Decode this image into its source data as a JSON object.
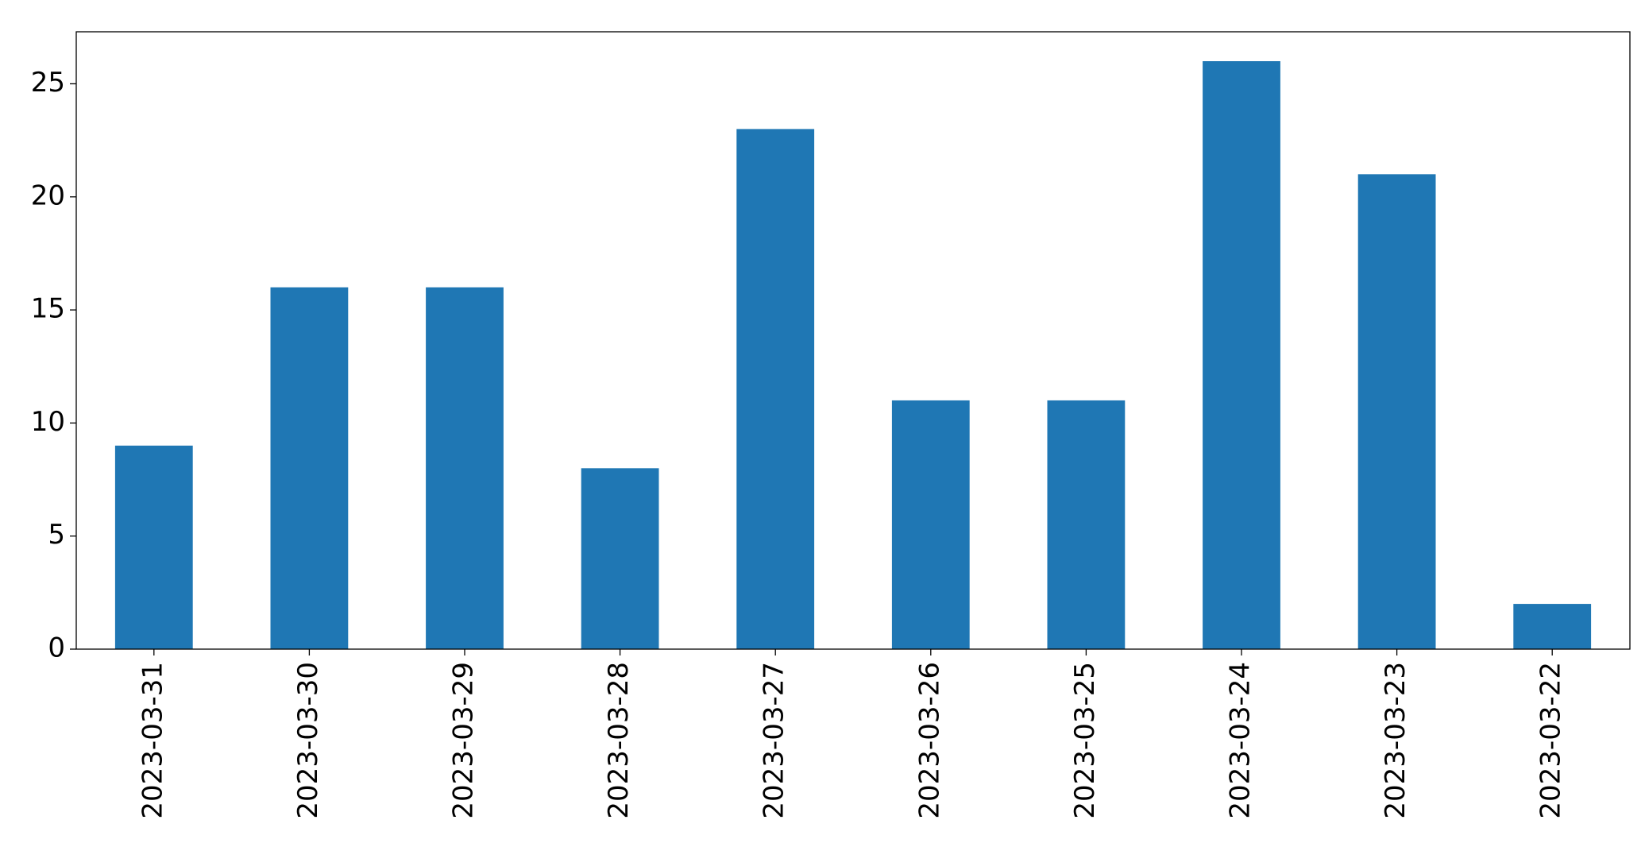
{
  "chart_data": {
    "type": "bar",
    "categories": [
      "2023-03-31",
      "2023-03-30",
      "2023-03-29",
      "2023-03-28",
      "2023-03-27",
      "2023-03-26",
      "2023-03-25",
      "2023-03-24",
      "2023-03-23",
      "2023-03-22"
    ],
    "values": [
      9,
      16,
      16,
      8,
      23,
      11,
      11,
      26,
      21,
      2
    ],
    "color": "#1f77b4",
    "ylim": [
      0,
      27.3
    ],
    "yticks": [
      0,
      5,
      10,
      15,
      20,
      25
    ],
    "grid": false
  }
}
